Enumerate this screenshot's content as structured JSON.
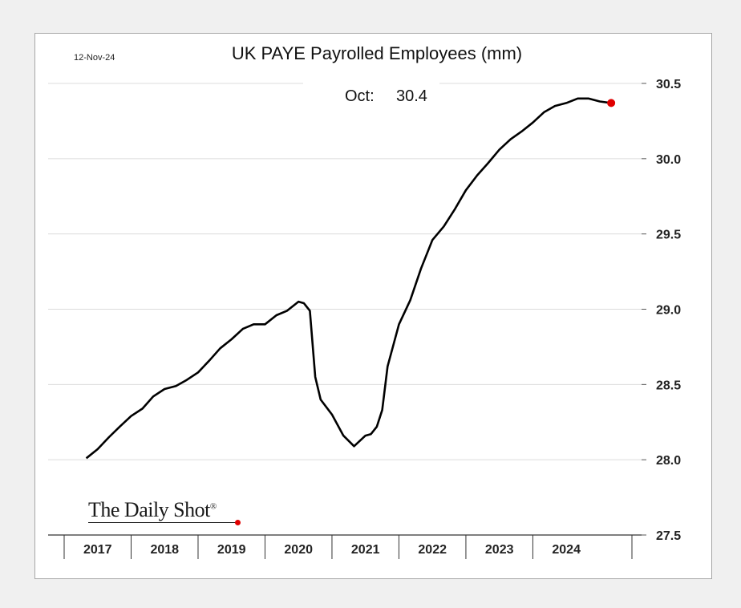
{
  "header": {
    "date_stamp": "12-Nov-24",
    "title": "UK PAYE Payrolled Employees (mm)",
    "latest_label": "Oct:",
    "latest_value": "30.4"
  },
  "brand": {
    "name": "The Daily Shot",
    "mark": "®",
    "dot_color": "#e00000"
  },
  "chart_data": {
    "type": "line",
    "title": "UK PAYE Payrolled Employees (mm)",
    "xlabel": "",
    "ylabel": "",
    "ylim": [
      27.5,
      30.5
    ],
    "yticks": [
      27.5,
      28.0,
      28.5,
      29.0,
      29.5,
      30.0,
      30.5
    ],
    "ytick_labels": [
      "27.5",
      "28.0",
      "28.5",
      "29.0",
      "29.5",
      "30.0",
      "30.5"
    ],
    "x_categories": [
      "2017",
      "2018",
      "2019",
      "2020",
      "2021",
      "2022",
      "2023",
      "2024"
    ],
    "grid": "horizontal",
    "line_color": "#000000",
    "last_point_color": "#e00000",
    "series": [
      {
        "values": [
          [
            2016.83,
            28.01
          ],
          [
            2017.0,
            28.07
          ],
          [
            2017.17,
            28.15
          ],
          [
            2017.33,
            28.22
          ],
          [
            2017.5,
            28.29
          ],
          [
            2017.67,
            28.34
          ],
          [
            2017.83,
            28.42
          ],
          [
            2018.0,
            28.47
          ],
          [
            2018.17,
            28.49
          ],
          [
            2018.33,
            28.53
          ],
          [
            2018.5,
            28.58
          ],
          [
            2018.67,
            28.66
          ],
          [
            2018.83,
            28.74
          ],
          [
            2019.0,
            28.8
          ],
          [
            2019.17,
            28.87
          ],
          [
            2019.33,
            28.9
          ],
          [
            2019.5,
            28.9
          ],
          [
            2019.67,
            28.96
          ],
          [
            2019.83,
            28.99
          ],
          [
            2020.0,
            29.05
          ],
          [
            2020.08,
            29.04
          ],
          [
            2020.17,
            28.99
          ],
          [
            2020.25,
            28.55
          ],
          [
            2020.33,
            28.4
          ],
          [
            2020.5,
            28.3
          ],
          [
            2020.67,
            28.16
          ],
          [
            2020.83,
            28.09
          ],
          [
            2021.0,
            28.16
          ],
          [
            2021.08,
            28.17
          ],
          [
            2021.17,
            28.22
          ],
          [
            2021.25,
            28.33
          ],
          [
            2021.33,
            28.62
          ],
          [
            2021.5,
            28.9
          ],
          [
            2021.67,
            29.06
          ],
          [
            2021.83,
            29.27
          ],
          [
            2022.0,
            29.46
          ],
          [
            2022.17,
            29.55
          ],
          [
            2022.33,
            29.66
          ],
          [
            2022.5,
            29.79
          ],
          [
            2022.67,
            29.89
          ],
          [
            2022.83,
            29.97
          ],
          [
            2023.0,
            30.06
          ],
          [
            2023.17,
            30.13
          ],
          [
            2023.33,
            30.18
          ],
          [
            2023.5,
            30.24
          ],
          [
            2023.67,
            30.31
          ],
          [
            2023.83,
            30.35
          ],
          [
            2024.0,
            30.37
          ],
          [
            2024.17,
            30.4
          ],
          [
            2024.33,
            30.4
          ],
          [
            2024.5,
            30.38
          ],
          [
            2024.67,
            30.37
          ]
        ]
      }
    ],
    "last_point": [
      2024.67,
      30.37
    ]
  }
}
